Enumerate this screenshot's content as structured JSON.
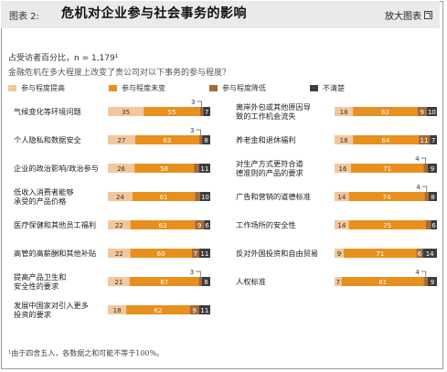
{
  "header": {
    "figure_label": "图表 2:",
    "title": "危机对企业参与社会事务的影响",
    "zoom_label": "放大图表"
  },
  "respondents_note": "占受访者百分比，n = 1,179¹",
  "question": "金融危机在多大程度上改变了贵公司对以下事务的参与程度？",
  "footnote": "¹由于四舍五入，各数据之和可能不等于100%。",
  "colors": {
    "increased": "#f3c79b",
    "unchanged": "#e8901e",
    "decreased": "#a86a36",
    "unknown": "#3d3d3d"
  },
  "chart_data": {
    "type": "bar",
    "orientation": "horizontal",
    "stacked": true,
    "unit": "%",
    "legend": [
      "参与程度提高",
      "参与程度未变",
      "参与程度降低",
      "不清楚"
    ],
    "categories": [
      "气候变化等环境问题",
      "个人隐私和数据安全",
      "企业的政治影响/政治参与",
      "低收入消费者能够承受的产品价格",
      "医疗保健和其他员工福利",
      "高管的高薪酬和其他补贴",
      "提高产品卫生和安全性的要求",
      "发展中国家对引入更多投资的要求",
      "离岸外包或其他原因导致的工作机会流失",
      "养老金和退休福利",
      "对生产方式更符合道德准则的产品的要求",
      "广告和营销的道德标准",
      "工作场所的安全性",
      "反对外国投资和自由贸易",
      "人权标准"
    ],
    "category_lines": [
      [
        "气候变化等环境问题"
      ],
      [
        "个人隐私和数据安全"
      ],
      [
        "企业的政治影响/政治参与"
      ],
      [
        "低收入消费者能够",
        "承受的产品价格"
      ],
      [
        "医疗保健和其他员工福利"
      ],
      [
        "高管的高薪酬和其他补贴"
      ],
      [
        "提高产品卫生和",
        "安全性的要求"
      ],
      [
        "发展中国家对引入更多",
        "投资的要求"
      ],
      [
        "离岸外包或其他原因导",
        "致的工作机会流失"
      ],
      [
        "养老金和退休福利"
      ],
      [
        "对生产方式更符合道",
        "德准则的产品的要求"
      ],
      [
        "广告和营销的道德标准"
      ],
      [
        "工作场所的安全性"
      ],
      [
        "反对外国投资和自由贸易"
      ],
      [
        "人权标准"
      ]
    ],
    "series": [
      {
        "name": "参与程度提高",
        "values": [
          35,
          27,
          26,
          24,
          22,
          22,
          21,
          18,
          18,
          18,
          16,
          14,
          14,
          9,
          7
        ]
      },
      {
        "name": "参与程度未变",
        "values": [
          55,
          63,
          58,
          61,
          63,
          60,
          67,
          62,
          63,
          64,
          71,
          74,
          75,
          71,
          81
        ]
      },
      {
        "name": "参与程度降低",
        "values": [
          3,
          3,
          5,
          5,
          9,
          7,
          3,
          9,
          9,
          11,
          4,
          4,
          5,
          6,
          4
        ]
      },
      {
        "name": "不清楚",
        "values": [
          7,
          8,
          11,
          10,
          6,
          11,
          8,
          11,
          10,
          7,
          9,
          8,
          6,
          14,
          9
        ]
      }
    ],
    "callouts": [
      {
        "row": 0,
        "segment": 2,
        "label": "3"
      },
      {
        "row": 1,
        "segment": 2,
        "label": "3"
      },
      {
        "row": 6,
        "segment": 2,
        "label": "3"
      },
      {
        "row": 10,
        "segment": 2,
        "label": "4"
      },
      {
        "row": 11,
        "segment": 2,
        "label": "4"
      },
      {
        "row": 14,
        "segment": 2,
        "label": "4"
      }
    ]
  }
}
